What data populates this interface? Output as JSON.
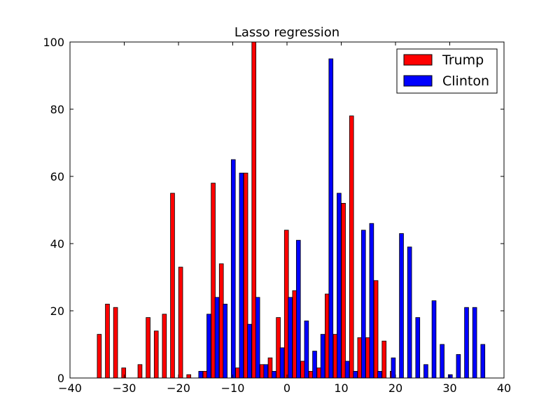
{
  "chart_data": {
    "type": "bar",
    "title": "Lasso regression",
    "xlabel": "",
    "ylabel": "",
    "xlim": [
      -40,
      40
    ],
    "ylim": [
      0,
      100
    ],
    "xticks": [
      -40,
      -30,
      -20,
      -10,
      0,
      10,
      20,
      30,
      40
    ],
    "yticks": [
      0,
      20,
      40,
      60,
      80,
      100
    ],
    "xtick_labels": [
      "−40",
      "−30",
      "−20",
      "−10",
      "0",
      "10",
      "20",
      "30",
      "40"
    ],
    "ytick_labels": [
      "0",
      "20",
      "40",
      "60",
      "80",
      "100"
    ],
    "grid": false,
    "legend_position": "top-right",
    "bar_width": 0.75,
    "series": [
      {
        "name": "Trump",
        "color": "#ff0000",
        "points": [
          [
            -34.6,
            13
          ],
          [
            -33.1,
            22
          ],
          [
            -31.6,
            21
          ],
          [
            -30.1,
            3
          ],
          [
            -27.1,
            4
          ],
          [
            -25.6,
            18
          ],
          [
            -24.1,
            14
          ],
          [
            -22.6,
            19
          ],
          [
            -21.1,
            55
          ],
          [
            -19.6,
            33
          ],
          [
            -18.1,
            1
          ],
          [
            -15.1,
            2
          ],
          [
            -13.6,
            58
          ],
          [
            -12.1,
            34
          ],
          [
            -9.1,
            3
          ],
          [
            -7.6,
            61
          ],
          [
            -6.1,
            100
          ],
          [
            -4.6,
            4
          ],
          [
            -3.1,
            6
          ],
          [
            -1.6,
            18
          ],
          [
            -0.1,
            44
          ],
          [
            1.4,
            26
          ],
          [
            2.9,
            5
          ],
          [
            4.4,
            2
          ],
          [
            5.9,
            3
          ],
          [
            7.4,
            25
          ],
          [
            8.9,
            13
          ],
          [
            10.4,
            52
          ],
          [
            11.9,
            78
          ],
          [
            13.4,
            12
          ],
          [
            14.9,
            12
          ],
          [
            16.4,
            29
          ],
          [
            17.9,
            11
          ],
          [
            19.4,
            2
          ]
        ]
      },
      {
        "name": "Clinton",
        "color": "#0000ff",
        "points": [
          [
            -15.9,
            2
          ],
          [
            -14.4,
            19
          ],
          [
            -12.9,
            24
          ],
          [
            -11.4,
            22
          ],
          [
            -9.9,
            65
          ],
          [
            -8.4,
            61
          ],
          [
            -6.9,
            16
          ],
          [
            -5.4,
            24
          ],
          [
            -3.9,
            4
          ],
          [
            -2.4,
            2
          ],
          [
            -0.9,
            9
          ],
          [
            0.6,
            24
          ],
          [
            2.1,
            41
          ],
          [
            3.6,
            17
          ],
          [
            5.1,
            8
          ],
          [
            6.6,
            13
          ],
          [
            8.1,
            95
          ],
          [
            9.6,
            55
          ],
          [
            11.1,
            5
          ],
          [
            12.6,
            2
          ],
          [
            14.1,
            44
          ],
          [
            15.6,
            46
          ],
          [
            17.1,
            2
          ],
          [
            19.6,
            6
          ],
          [
            21.1,
            43
          ],
          [
            22.6,
            39
          ],
          [
            24.1,
            18
          ],
          [
            25.6,
            4
          ],
          [
            27.1,
            23
          ],
          [
            28.6,
            10
          ],
          [
            30.1,
            1
          ],
          [
            31.6,
            7
          ],
          [
            33.1,
            21
          ],
          [
            34.6,
            21
          ],
          [
            36.1,
            10
          ]
        ]
      }
    ]
  }
}
